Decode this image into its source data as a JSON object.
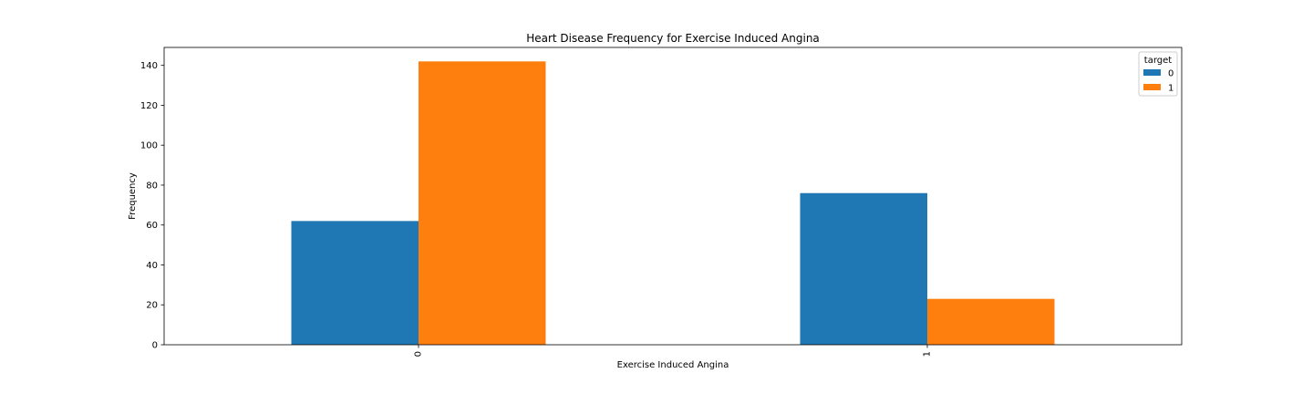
{
  "chart_data": {
    "type": "bar",
    "title": "Heart Disease Frequency for Exercise Induced Angina",
    "xlabel": "Exercise Induced Angina",
    "ylabel": "Frequency",
    "categories": [
      "0",
      "1"
    ],
    "series": [
      {
        "name": "0",
        "values": [
          62,
          76
        ],
        "color": "#1f77b4"
      },
      {
        "name": "1",
        "values": [
          142,
          23
        ],
        "color": "#ff7f0e"
      }
    ],
    "ylim": [
      0,
      149
    ],
    "yticks": [
      0,
      20,
      40,
      60,
      80,
      100,
      120,
      140
    ],
    "xtick_rotation": 90,
    "grid": false,
    "legend": {
      "title": "target",
      "placement": "top-right"
    }
  }
}
